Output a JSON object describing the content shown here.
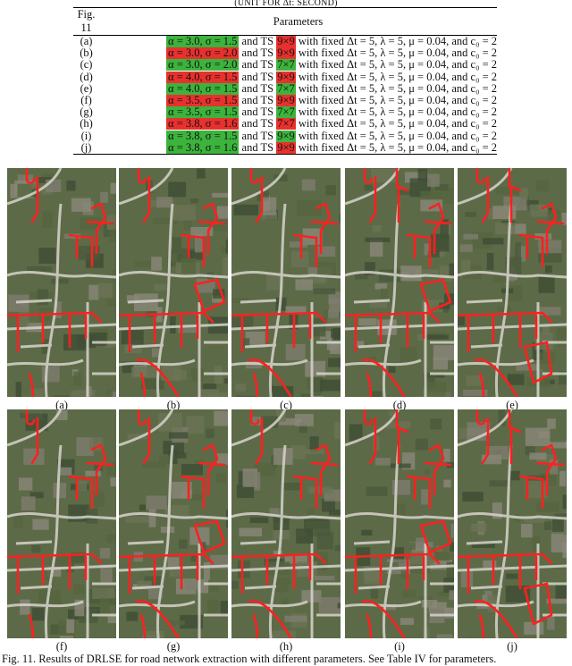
{
  "table_title": "(UNIT FOR Δt: SECOND)",
  "table": {
    "header": {
      "fig": "Fig. 11",
      "params": "Parameters"
    },
    "and_ts": "and TS",
    "suffix": "with fixed Δt = 5, λ = 5, μ = 0.04, and c₀ = 2",
    "rows": [
      {
        "fig": "(a)",
        "alpha": "α = 3.0, σ = 1.5",
        "alpha_color": "#3cb33c",
        "ts": "9×9",
        "ts_color": "#e8312e"
      },
      {
        "fig": "(b)",
        "alpha": "α = 3.0, σ = 2.0",
        "alpha_color": "#e8312e",
        "ts": "9×9",
        "ts_color": "#e8312e"
      },
      {
        "fig": "(c)",
        "alpha": "α = 3.0, σ = 2.0",
        "alpha_color": "#3cb33c",
        "ts": "7×7",
        "ts_color": "#3cb33c"
      },
      {
        "fig": "(d)",
        "alpha": "α = 4.0, σ = 1.5",
        "alpha_color": "#e8312e",
        "ts": "9×9",
        "ts_color": "#e8312e"
      },
      {
        "fig": "(e)",
        "alpha": "α = 4.0, σ = 1.5",
        "alpha_color": "#3cb33c",
        "ts": "7×7",
        "ts_color": "#3cb33c"
      },
      {
        "fig": "(f)",
        "alpha": "α = 3.5, σ = 1.5",
        "alpha_color": "#e8312e",
        "ts": "9×9",
        "ts_color": "#e8312e"
      },
      {
        "fig": "(g)",
        "alpha": "α = 3.5, σ = 1.5",
        "alpha_color": "#3cb33c",
        "ts": "7×7",
        "ts_color": "#3cb33c"
      },
      {
        "fig": "(h)",
        "alpha": "α = 3.8, σ = 1.6",
        "alpha_color": "#e8312e",
        "ts": "7×7",
        "ts_color": "#e8312e"
      },
      {
        "fig": "(i)",
        "alpha": "α = 3.8, σ = 1.5",
        "alpha_color": "#3cb33c",
        "ts": "9×9",
        "ts_color": "#3cb33c"
      },
      {
        "fig": "(j)",
        "alpha": "α = 3.8, σ = 1.6",
        "alpha_color": "#3cb33c",
        "ts": "9×9",
        "ts_color": "#e8312e"
      }
    ]
  },
  "panels_row1": [
    "(a)",
    "(b)",
    "(c)",
    "(d)",
    "(e)"
  ],
  "panels_row2": [
    "(f)",
    "(g)",
    "(h)",
    "(i)",
    "(j)"
  ],
  "figure_caption": "Fig. 11. Results of DRLSE for road network extraction with different parameters. See Table IV for parameters.",
  "colors": {
    "road_overlay": "#ff2020",
    "aerial_base": "#5d6a47",
    "road_base": "#d6d4cc"
  }
}
